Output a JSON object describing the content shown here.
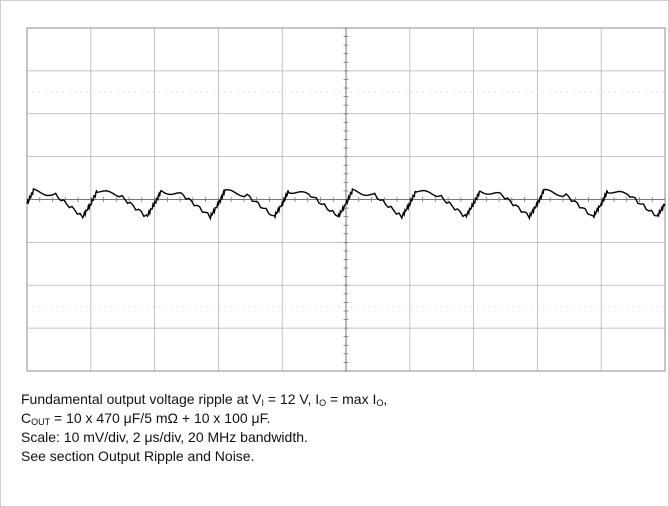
{
  "chart_data": {
    "type": "line",
    "title": "",
    "xlabel": "",
    "ylabel": "",
    "x_divisions": 10,
    "y_divisions": 8,
    "grid": true,
    "x_unit_per_div_us": 2,
    "y_unit_per_div_mV": 10,
    "xlim_us": [
      0,
      20
    ],
    "ylim_mV": [
      -40,
      40
    ],
    "waveform": "sawtooth ripple",
    "ripple_period_us": 2,
    "series": [
      {
        "x": [
          0,
          0.2,
          0.9,
          1.75,
          2.0,
          2.2,
          2.9,
          3.75,
          4.0,
          4.2,
          4.9,
          5.75,
          6.0,
          6.2,
          6.9,
          7.75,
          8.0,
          8.2,
          8.9,
          9.75,
          10.0,
          10.2,
          10.9,
          11.75,
          12.0,
          12.2,
          12.9,
          13.75,
          14.0,
          14.2,
          14.9,
          15.75,
          16.0,
          16.2,
          16.9,
          17.75,
          18.0,
          18.2,
          18.9,
          19.75,
          20.0
        ],
        "y": [
          -1,
          2,
          1,
          -4,
          -1,
          2,
          1,
          -4,
          -1,
          2,
          1,
          -4,
          -1,
          2,
          1,
          -4,
          -1,
          2,
          1,
          -4,
          -1,
          2,
          1,
          -4,
          -1,
          2,
          1,
          -4,
          -1,
          2,
          1,
          -4,
          -1,
          2,
          1,
          -4,
          -1,
          2,
          1,
          -4,
          -1
        ]
      }
    ],
    "line_color": "#000000",
    "grid_color": "#b4b4b4"
  },
  "caption": {
    "line1_a": "Fundamental output voltage ripple at V",
    "line1_sub1": "I",
    "line1_b": " = 12 V, I",
    "line1_sub2": "O",
    "line1_c": " = max I",
    "line1_sub3": "O",
    "line1_d": ",",
    "line2_a": "C",
    "line2_sub": "OUT",
    "line2_b": " = 10 x 470 μF/5 mΩ + 10 x 100 μF.",
    "line3": "Scale: 10 mV/div, 2 μs/div, 20 MHz bandwidth.",
    "line4": "See section Output Ripple and Noise."
  }
}
